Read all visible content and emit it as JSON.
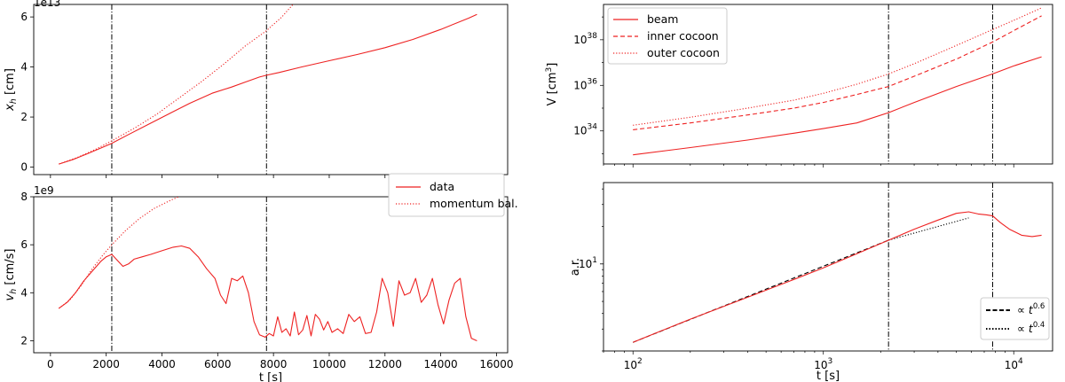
{
  "chart_data": [
    {
      "id": "xh",
      "type": "line",
      "ylabel": "x",
      "ylabel_sub": "h",
      "ylabel_unit": " [cm]",
      "offset_text": "1e13",
      "xlim": [
        -600,
        16400
      ],
      "ylim": [
        -0.3,
        6.5
      ],
      "xticks": [
        0,
        2000,
        4000,
        6000,
        8000,
        10000,
        12000,
        14000,
        16000
      ],
      "yticks": [
        0,
        2,
        4,
        6
      ],
      "ytick_labels": [
        "0",
        "2",
        "4",
        "6"
      ],
      "vlines": [
        2200,
        7750
      ],
      "series": [
        {
          "name": "data",
          "style": "solid",
          "x": [
            300,
            800,
            1300,
            1800,
            2200,
            2800,
            3500,
            4200,
            5000,
            5800,
            6500,
            7000,
            7500,
            7750,
            8200,
            9000,
            10000,
            11000,
            12000,
            13000,
            14000,
            15000,
            15300
          ],
          "y": [
            0.12,
            0.3,
            0.52,
            0.76,
            0.95,
            1.3,
            1.7,
            2.1,
            2.55,
            2.95,
            3.2,
            3.4,
            3.6,
            3.67,
            3.78,
            4.0,
            4.25,
            4.5,
            4.77,
            5.1,
            5.5,
            5.95,
            6.1
          ]
        },
        {
          "name": "momentum bal.",
          "style": "dotted",
          "x": [
            300,
            1000,
            1600,
            2200,
            3000,
            3800,
            4600,
            5400,
            6200,
            7000,
            7750,
            8300,
            8700
          ],
          "y": [
            0.12,
            0.4,
            0.7,
            1.05,
            1.55,
            2.1,
            2.75,
            3.4,
            4.1,
            4.85,
            5.45,
            6.0,
            6.5
          ]
        }
      ]
    },
    {
      "id": "vh",
      "type": "line",
      "ylabel": "v",
      "ylabel_sub": "h",
      "ylabel_unit": " [cm/s]",
      "offset_text": "1e9",
      "xlabel": "t [s]",
      "xlim": [
        -600,
        16400
      ],
      "ylim": [
        1.5,
        8.0
      ],
      "xticks": [
        0,
        2000,
        4000,
        6000,
        8000,
        10000,
        12000,
        14000,
        16000
      ],
      "xtick_labels": [
        "0",
        "2000",
        "4000",
        "6000",
        "8000",
        "10000",
        "12000",
        "14000",
        "16000"
      ],
      "yticks": [
        2,
        4,
        6,
        8
      ],
      "ytick_labels": [
        "2",
        "4",
        "6",
        "8"
      ],
      "vlines": [
        2200,
        7750
      ],
      "legend": [
        {
          "label": "data",
          "style": "solid"
        },
        {
          "label": "momentum bal.",
          "style": "dotted"
        }
      ],
      "series": [
        {
          "name": "data",
          "style": "solid",
          "x": [
            300,
            600,
            900,
            1200,
            1500,
            1800,
            2000,
            2200,
            2400,
            2600,
            2800,
            3000,
            3300,
            3600,
            4000,
            4400,
            4700,
            5000,
            5300,
            5600,
            5900,
            6100,
            6300,
            6500,
            6700,
            6900,
            7100,
            7300,
            7500,
            7700,
            7850,
            8000,
            8150,
            8300,
            8450,
            8600,
            8750,
            8900,
            9050,
            9200,
            9350,
            9500,
            9650,
            9800,
            9950,
            10100,
            10300,
            10500,
            10700,
            10900,
            11100,
            11300,
            11500,
            11700,
            11900,
            12100,
            12300,
            12500,
            12700,
            12900,
            13100,
            13300,
            13500,
            13700,
            13900,
            14100,
            14300,
            14500,
            14700,
            14900,
            15100,
            15300
          ],
          "y": [
            3.35,
            3.6,
            4.0,
            4.5,
            4.9,
            5.3,
            5.5,
            5.6,
            5.35,
            5.1,
            5.2,
            5.4,
            5.5,
            5.6,
            5.75,
            5.9,
            5.95,
            5.85,
            5.5,
            5.0,
            4.6,
            3.9,
            3.55,
            4.6,
            4.5,
            4.7,
            4.0,
            2.8,
            2.25,
            2.15,
            2.3,
            2.2,
            3.0,
            2.35,
            2.5,
            2.2,
            3.2,
            2.25,
            2.45,
            3.05,
            2.2,
            3.1,
            2.9,
            2.45,
            2.8,
            2.35,
            2.5,
            2.3,
            3.1,
            2.8,
            3.0,
            2.3,
            2.35,
            3.2,
            4.6,
            4.0,
            2.6,
            4.5,
            3.9,
            4.0,
            4.6,
            3.6,
            3.9,
            4.6,
            3.5,
            2.7,
            3.7,
            4.4,
            4.6,
            3.0,
            2.1,
            2.0
          ]
        },
        {
          "name": "momentum bal.",
          "style": "dotted",
          "x": [
            300,
            700,
            1100,
            1500,
            1900,
            2200,
            2700,
            3200,
            3700,
            4300,
            4900,
            5400
          ],
          "y": [
            3.35,
            3.7,
            4.3,
            5.0,
            5.6,
            6.0,
            6.6,
            7.1,
            7.5,
            7.85,
            8.15,
            8.45
          ]
        }
      ]
    },
    {
      "id": "volume",
      "type": "line",
      "xscale": "log",
      "yscale": "log",
      "ylabel": "V [cm",
      "ylabel_sup": "3",
      "ylabel_close": "]",
      "xlim": [
        70,
        16000
      ],
      "ylim_exp": [
        32.55,
        39.55
      ],
      "yticks_exp": [
        34,
        36,
        38
      ],
      "ytick_base": "10",
      "vlines": [
        2200,
        7750
      ],
      "legend": [
        {
          "label": "beam",
          "style": "solid"
        },
        {
          "label": "inner cocoon",
          "style": "dashed"
        },
        {
          "label": "outer cocoon",
          "style": "dotted"
        }
      ],
      "series": [
        {
          "name": "beam",
          "style": "solid",
          "x": [
            100,
            200,
            400,
            700,
            1000,
            1500,
            2200,
            3000,
            5000,
            7750,
            10000,
            14000
          ],
          "y_exp": [
            32.95,
            33.27,
            33.6,
            33.9,
            34.1,
            34.35,
            34.8,
            35.25,
            35.95,
            36.5,
            36.85,
            37.25
          ]
        },
        {
          "name": "inner cocoon",
          "style": "dashed",
          "x": [
            100,
            200,
            400,
            700,
            1000,
            1500,
            2200,
            3000,
            5000,
            7750,
            10000,
            14000
          ],
          "y_exp": [
            34.05,
            34.35,
            34.7,
            35.0,
            35.25,
            35.6,
            35.95,
            36.4,
            37.15,
            37.9,
            38.4,
            39.05
          ]
        },
        {
          "name": "outer cocoon",
          "style": "dotted",
          "x": [
            100,
            200,
            400,
            700,
            1000,
            1500,
            2200,
            3000,
            5000,
            7750,
            10000,
            14000
          ],
          "y_exp": [
            34.25,
            34.6,
            35.0,
            35.35,
            35.65,
            36.05,
            36.5,
            36.95,
            37.75,
            38.45,
            38.85,
            39.4
          ]
        }
      ]
    },
    {
      "id": "aspect_ratio",
      "type": "line",
      "xscale": "log",
      "yscale": "log",
      "ylabel": "a.r.",
      "xlabel": "t [s]",
      "xlim": [
        70,
        16000
      ],
      "ylim": [
        2.0,
        45
      ],
      "xticks": [
        100,
        1000,
        10000
      ],
      "xtick_exps": [
        "2",
        "3",
        "4"
      ],
      "xtick_base": "10",
      "yticks": [
        10
      ],
      "ytick_labels": [
        "10"
      ],
      "ytick_sup": "1",
      "vlines": [
        2200,
        7750
      ],
      "legend": [
        {
          "label": "∝ t",
          "exp": "0.6",
          "style": "dashed"
        },
        {
          "label": "∝ t",
          "exp": "0.4",
          "style": "dotted"
        }
      ],
      "series": [
        {
          "name": "data",
          "style": "solid",
          "x": [
            100,
            200,
            400,
            700,
            1000,
            1500,
            2200,
            3000,
            4000,
            5000,
            5800,
            6500,
            7200,
            7750,
            8500,
            9500,
            11000,
            12500,
            14000
          ],
          "y": [
            2.35,
            3.6,
            5.4,
            7.5,
            9.3,
            12.1,
            15.5,
            19.0,
            22.5,
            25.5,
            26.2,
            25.2,
            24.8,
            24.3,
            21.5,
            19.0,
            17.0,
            16.6,
            17.0
          ]
        },
        {
          "name": "∝ t^0.6",
          "style": "dashed",
          "x": [
            100,
            2200
          ],
          "y": [
            2.35,
            15.5
          ]
        },
        {
          "name": "∝ t^0.4",
          "style": "dotted",
          "x": [
            2200,
            5800
          ],
          "y": [
            15.5,
            23.4
          ]
        }
      ]
    }
  ],
  "colors": {
    "data": "#ee2222",
    "reference": "#000000",
    "vline": "#000000",
    "legend_edge": "#cccccc"
  }
}
